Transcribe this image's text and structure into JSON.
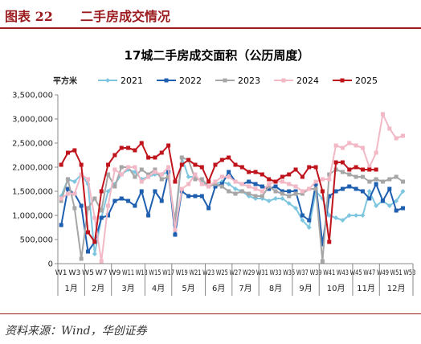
{
  "figure": {
    "label": "图表 22",
    "title": "二手房成交情况",
    "source": "资料来源：Wind，华创证券"
  },
  "chart_data": {
    "type": "line",
    "title": "17城二手房成交面积（公历周度）",
    "ylabel": "平方米",
    "ylim": [
      0,
      3500000
    ],
    "yticks": [
      0,
      500000,
      1000000,
      1500000,
      2000000,
      2500000,
      3000000,
      3500000
    ],
    "ytick_labels": [
      "0",
      "500,000",
      "1,000,000",
      "1,500,000",
      "2,000,000",
      "2,500,000",
      "3,000,000",
      "3,500,000"
    ],
    "grid": false,
    "legend_position": "top",
    "weeks": [
      "W1",
      "W2",
      "W3",
      "W4",
      "W5",
      "W6",
      "W7",
      "W8",
      "W9",
      "W10",
      "W11",
      "W12",
      "W13",
      "W14",
      "W15",
      "W16",
      "W17",
      "W18",
      "W19",
      "W20",
      "W21",
      "W22",
      "W23",
      "W24",
      "W25",
      "W26",
      "W27",
      "W28",
      "W29",
      "W30",
      "W31",
      "W32",
      "W33",
      "W34",
      "W35",
      "W36",
      "W37",
      "W38",
      "W39",
      "W40",
      "W41",
      "W42",
      "W43",
      "W44",
      "W45",
      "W46",
      "W47",
      "W48",
      "W49",
      "W50",
      "W51",
      "W52",
      "W53"
    ],
    "x_tick_labels": [
      "W1",
      "W3",
      "W5",
      "W7",
      "W9",
      "W11",
      "W13",
      "W15",
      "W17",
      "W19",
      "W21",
      "W23",
      "W25",
      "W27",
      "W29",
      "W31",
      "W33",
      "W35",
      "W37",
      "W39",
      "W41",
      "W43",
      "W45",
      "W47",
      "W49",
      "W51",
      "W53"
    ],
    "x_tick_indices": [
      0,
      2,
      4,
      6,
      8,
      10,
      12,
      14,
      16,
      18,
      20,
      22,
      24,
      26,
      28,
      30,
      32,
      34,
      36,
      38,
      40,
      42,
      44,
      46,
      48,
      50,
      52
    ],
    "months": [
      {
        "label": "1月",
        "start": 0,
        "end": 4
      },
      {
        "label": "2月",
        "start": 4,
        "end": 8
      },
      {
        "label": "3月",
        "start": 8,
        "end": 13
      },
      {
        "label": "4月",
        "start": 13,
        "end": 17
      },
      {
        "label": "5月",
        "start": 17,
        "end": 22
      },
      {
        "label": "6月",
        "start": 22,
        "end": 26
      },
      {
        "label": "7月",
        "start": 26,
        "end": 30
      },
      {
        "label": "8月",
        "start": 30,
        "end": 35
      },
      {
        "label": "9月",
        "start": 35,
        "end": 39
      },
      {
        "label": "10月",
        "start": 39,
        "end": 44
      },
      {
        "label": "11月",
        "start": 44,
        "end": 48
      },
      {
        "label": "12月",
        "start": 48,
        "end": 53
      }
    ],
    "series": [
      {
        "name": "2021",
        "color": "#7ec6e0",
        "marker": "diamond",
        "values": [
          1400000,
          1750000,
          1700000,
          1850000,
          1650000,
          200000,
          950000,
          1500000,
          1650000,
          1850000,
          1950000,
          1900000,
          1750000,
          1800000,
          1850000,
          1850000,
          1900000,
          800000,
          2200000,
          1800000,
          1800000,
          1700000,
          1600000,
          1650000,
          1700000,
          1650000,
          1550000,
          1500000,
          1400000,
          1350000,
          1350000,
          1300000,
          1350000,
          1350000,
          1250000,
          1150000,
          900000,
          750000,
          1500000,
          1350000,
          1000000,
          950000,
          900000,
          1000000,
          1000000,
          1000000,
          1500000,
          1200000,
          1300000,
          1200000,
          1300000,
          1500000,
          null
        ]
      },
      {
        "name": "2022",
        "color": "#1f5fb0",
        "marker": "square",
        "values": [
          800000,
          1550000,
          1450000,
          1200000,
          250000,
          450000,
          950000,
          1000000,
          1300000,
          1350000,
          1300000,
          1200000,
          1500000,
          1000000,
          1500000,
          1300000,
          1900000,
          600000,
          1500000,
          1400000,
          1400000,
          1400000,
          1150000,
          1600000,
          1650000,
          1900000,
          1700000,
          1650000,
          1700000,
          1650000,
          1600000,
          1550000,
          1600000,
          1500000,
          1500000,
          1500000,
          1000000,
          900000,
          1650000,
          400000,
          1400000,
          1500000,
          1550000,
          1600000,
          1550000,
          1500000,
          1350000,
          1650000,
          1300000,
          1550000,
          1100000,
          1150000,
          null
        ]
      },
      {
        "name": "2023",
        "color": "#a6a6a6",
        "marker": "square",
        "values": [
          1300000,
          1750000,
          1150000,
          100000,
          1150000,
          1350000,
          1100000,
          1850000,
          1600000,
          2000000,
          2000000,
          1800000,
          1950000,
          1850000,
          1950000,
          1750000,
          1800000,
          900000,
          2200000,
          2150000,
          1750000,
          1750000,
          1600000,
          1650000,
          1600000,
          1500000,
          1450000,
          1500000,
          1450000,
          1400000,
          1400000,
          1600000,
          1500000,
          1450000,
          1400000,
          1450000,
          1450000,
          1550000,
          1550000,
          50000,
          1850000,
          1950000,
          1900000,
          1850000,
          1800000,
          1800000,
          1700000,
          1750000,
          1700000,
          1750000,
          1800000,
          1700000,
          null
        ]
      },
      {
        "name": "2024",
        "color": "#f2b8c6",
        "marker": "square",
        "values": [
          1350000,
          1450000,
          1450000,
          1850000,
          1750000,
          950000,
          50000,
          1200000,
          1950000,
          1850000,
          2000000,
          2000000,
          1700000,
          1800000,
          1900000,
          1850000,
          2000000,
          700000,
          1550000,
          1650000,
          1850000,
          1650000,
          1600000,
          1700000,
          1800000,
          1800000,
          1700000,
          1650000,
          1600000,
          1550000,
          1500000,
          1650000,
          1700000,
          1700000,
          1650000,
          1600000,
          1500000,
          1550000,
          1700000,
          1750000,
          1750000,
          2450000,
          2400000,
          2500000,
          2450000,
          2400000,
          2000000,
          2300000,
          3100000,
          2800000,
          2600000,
          2650000,
          null
        ]
      },
      {
        "name": "2025",
        "color": "#c0141c",
        "marker": "square",
        "values": [
          2050000,
          2300000,
          2350000,
          2050000,
          650000,
          450000,
          1500000,
          2050000,
          2250000,
          2400000,
          2400000,
          2350000,
          2500000,
          2200000,
          2200000,
          2300000,
          2450000,
          1700000,
          2050000,
          2150000,
          2050000,
          2000000,
          1700000,
          2050000,
          2150000,
          2200000,
          2050000,
          2000000,
          1900000,
          1900000,
          1850000,
          1750000,
          1700000,
          1800000,
          1850000,
          1950000,
          1800000,
          2000000,
          2000000,
          1500000,
          450000,
          2100000,
          2100000,
          1950000,
          2000000,
          1950000,
          1950000,
          1950000,
          null,
          null,
          null,
          null,
          null
        ]
      }
    ]
  }
}
